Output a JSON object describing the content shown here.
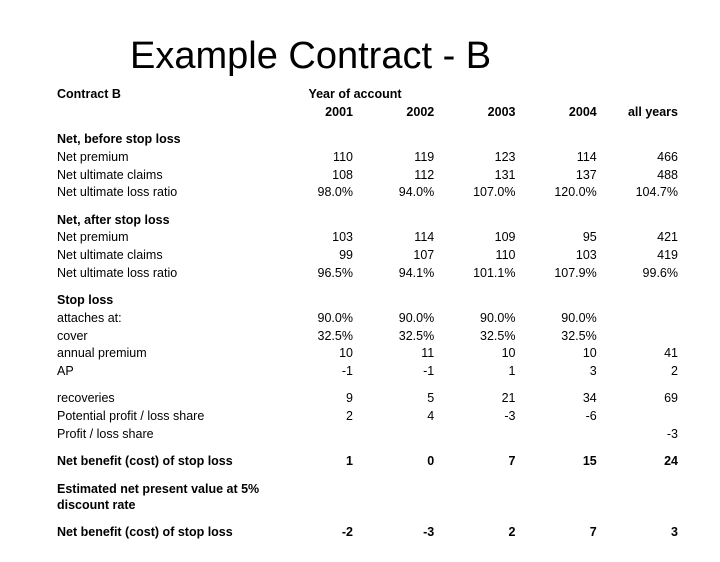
{
  "title": "Example Contract - B",
  "contract_label": "Contract B",
  "year_header": "Year of account",
  "cols": [
    "2001",
    "2002",
    "2003",
    "2004",
    "all years"
  ],
  "sections": {
    "before": {
      "header": "Net, before stop loss",
      "rows": [
        {
          "label": "Net premium",
          "v": [
            "110",
            "119",
            "123",
            "114",
            "466"
          ]
        },
        {
          "label": "Net ultimate claims",
          "v": [
            "108",
            "112",
            "131",
            "137",
            "488"
          ]
        },
        {
          "label": "Net ultimate loss ratio",
          "v": [
            "98.0%",
            "94.0%",
            "107.0%",
            "120.0%",
            "104.7%"
          ]
        }
      ]
    },
    "after": {
      "header": "Net, after stop loss",
      "rows": [
        {
          "label": "Net premium",
          "v": [
            "103",
            "114",
            "109",
            "95",
            "421"
          ]
        },
        {
          "label": "Net ultimate claims",
          "v": [
            "99",
            "107",
            "110",
            "103",
            "419"
          ]
        },
        {
          "label": "Net ultimate loss ratio",
          "v": [
            "96.5%",
            "94.1%",
            "101.1%",
            "107.9%",
            "99.6%"
          ]
        }
      ]
    },
    "stoploss": {
      "header": "Stop loss",
      "rows": [
        {
          "label": "attaches at:",
          "v": [
            "90.0%",
            "90.0%",
            "90.0%",
            "90.0%",
            ""
          ]
        },
        {
          "label": "cover",
          "v": [
            "32.5%",
            "32.5%",
            "32.5%",
            "32.5%",
            ""
          ]
        },
        {
          "label": "annual premium",
          "v": [
            "10",
            "11",
            "10",
            "10",
            "41"
          ]
        },
        {
          "label": "AP",
          "v": [
            "-1",
            "-1",
            "1",
            "3",
            "2"
          ]
        }
      ]
    },
    "recov": {
      "rows": [
        {
          "label": "recoveries",
          "v": [
            "9",
            "5",
            "21",
            "34",
            "69"
          ]
        },
        {
          "label": "Potential profit / loss share",
          "v": [
            "2",
            "4",
            "-3",
            "-6",
            ""
          ]
        },
        {
          "label": "Profit / loss share",
          "v": [
            "",
            "",
            "",
            "",
            "-3"
          ]
        }
      ]
    },
    "netbenefit": {
      "label": "Net benefit (cost) of stop loss",
      "v": [
        "1",
        "0",
        "7",
        "15",
        "24"
      ]
    },
    "npv_header": "Estimated net present value at 5% discount rate",
    "netbenefit2": {
      "label": "Net benefit (cost) of stop loss",
      "v": [
        "-2",
        "-3",
        "2",
        "7",
        "3"
      ]
    }
  }
}
